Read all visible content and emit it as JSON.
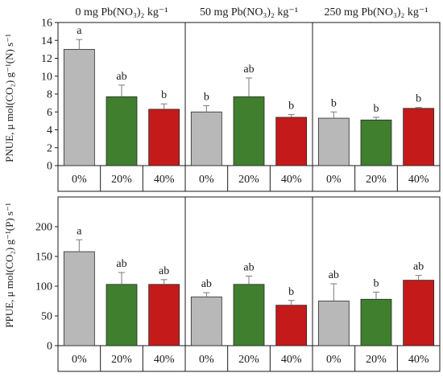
{
  "colors": {
    "axis": "#1a1a1a",
    "bar_stroke": "#2a2a2a",
    "error": "#7a7a7a",
    "treatments": [
      "#b8b8b8",
      "#3f7f2e",
      "#c41a1a"
    ]
  },
  "chart_data": [
    {
      "type": "bar",
      "ylabel": "PNUE,  μ mol(CO₂) g⁻¹(N) s⁻¹",
      "ylim": [
        0,
        16
      ],
      "yticks": [
        0,
        2,
        4,
        6,
        8,
        10,
        12,
        14,
        16
      ],
      "ytick_labels": [
        "0",
        "2",
        "4",
        "6",
        "8",
        "10",
        "12",
        "14",
        "16"
      ],
      "panels": [
        {
          "title": "0 mg Pb(NO₃)₂ kg⁻¹",
          "categories": [
            "0%",
            "20%",
            "40%"
          ],
          "values": [
            13.0,
            7.7,
            6.3
          ],
          "errors": [
            1.1,
            1.3,
            0.6
          ],
          "letters": [
            "a",
            "ab",
            "b"
          ]
        },
        {
          "title": "50 mg Pb(NO₃)₂ kg⁻¹",
          "categories": [
            "0%",
            "20%",
            "40%"
          ],
          "values": [
            6.0,
            7.7,
            5.4
          ],
          "errors": [
            0.7,
            2.1,
            0.3
          ],
          "letters": [
            "b",
            "ab",
            "b"
          ]
        },
        {
          "title": "250 mg Pb(NO₃)₂ kg⁻¹",
          "categories": [
            "0%",
            "20%",
            "40%"
          ],
          "values": [
            5.3,
            5.1,
            6.4
          ],
          "errors": [
            0.7,
            0.3,
            0.1
          ],
          "letters": [
            "b",
            "b",
            "b"
          ]
        }
      ]
    },
    {
      "type": "bar",
      "ylabel": "PPUE,  μ mol(CO₂) g⁻¹(P) s⁻¹",
      "ylim": [
        0,
        250
      ],
      "yticks": [
        0,
        50,
        100,
        150,
        200
      ],
      "ytick_labels": [
        "0",
        "50",
        "100",
        "150",
        "200"
      ],
      "panels": [
        {
          "categories": [
            "0%",
            "20%",
            "40%"
          ],
          "values": [
            158,
            103,
            103
          ],
          "errors": [
            20,
            20,
            8
          ],
          "letters": [
            "a",
            "ab",
            "ab"
          ]
        },
        {
          "categories": [
            "0%",
            "20%",
            "40%"
          ],
          "values": [
            82,
            103,
            68
          ],
          "errors": [
            7,
            14,
            8
          ],
          "letters": [
            "ab",
            "ab",
            "b"
          ]
        },
        {
          "categories": [
            "0%",
            "20%",
            "40%"
          ],
          "values": [
            75,
            78,
            110
          ],
          "errors": [
            29,
            12,
            8
          ],
          "letters": [
            "ab",
            "b",
            "ab"
          ]
        }
      ]
    }
  ]
}
